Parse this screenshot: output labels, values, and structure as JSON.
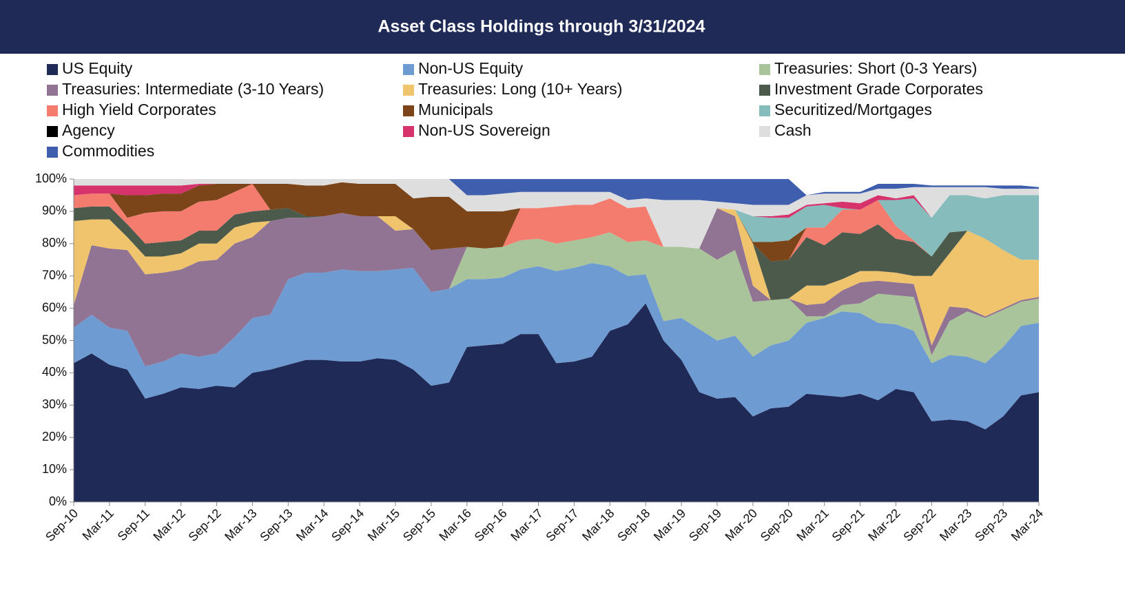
{
  "chart_data": {
    "type": "stacked_area",
    "title": "Asset Class Holdings through 3/31/2024",
    "categories": [
      "Sep-10",
      null,
      "Mar-11",
      null,
      "Sep-11",
      null,
      "Mar-12",
      null,
      "Sep-12",
      null,
      "Mar-13",
      null,
      "Sep-13",
      null,
      "Mar-14",
      null,
      "Sep-14",
      null,
      "Mar-15",
      null,
      "Sep-15",
      null,
      "Mar-16",
      null,
      "Sep-16",
      null,
      "Mar-17",
      null,
      "Sep-17",
      null,
      "Mar-18",
      null,
      "Sep-18",
      null,
      "Mar-19",
      null,
      "Sep-19",
      null,
      "Mar-20",
      null,
      "Sep-20",
      null,
      "Mar-21",
      null,
      "Sep-21",
      null,
      "Mar-22",
      null,
      "Sep-22",
      null,
      "Mar-23",
      null,
      "Sep-23",
      null,
      "Mar-24"
    ],
    "ylim": [
      0,
      100
    ],
    "yticks": [
      {
        "value": 0,
        "label": "0%"
      },
      {
        "value": 10,
        "label": "10%"
      },
      {
        "value": 20,
        "label": "20%"
      },
      {
        "value": 30,
        "label": "30%"
      },
      {
        "value": 40,
        "label": "40%"
      },
      {
        "value": 50,
        "label": "50%"
      },
      {
        "value": 60,
        "label": "60%"
      },
      {
        "value": 70,
        "label": "70%"
      },
      {
        "value": 80,
        "label": "80%"
      },
      {
        "value": 90,
        "label": "90%"
      },
      {
        "value": 100,
        "label": "100%"
      }
    ],
    "series": [
      {
        "name": "US Equity",
        "color": "#1f2a56",
        "values": [
          43,
          46,
          42.5,
          41,
          32,
          33.5,
          35.5,
          35,
          36,
          35.5,
          40,
          41,
          42.5,
          44,
          44,
          43.5,
          43.5,
          44.5,
          44,
          41,
          36,
          37,
          48,
          48.5,
          49,
          52,
          52,
          43,
          43.5,
          45,
          53,
          55,
          61.5,
          50,
          44,
          34,
          32,
          32.5,
          26.5,
          29,
          29.5,
          33.5,
          33,
          32.5,
          33.5,
          31.5,
          35,
          34,
          25,
          25.5,
          25,
          22.5,
          26.5,
          33,
          34
        ]
      },
      {
        "name": "Non-US Equity",
        "color": "#6f9bd3",
        "values": [
          11,
          12,
          11.5,
          12,
          10,
          10,
          10.5,
          10,
          10,
          15.5,
          17,
          17,
          26.5,
          27,
          27,
          28.5,
          28,
          27,
          28,
          31.5,
          29,
          29,
          21,
          20.5,
          20.5,
          20,
          21,
          28.5,
          29,
          29,
          20,
          15,
          9,
          6,
          13,
          19.5,
          18,
          19,
          18.5,
          19.5,
          20.5,
          22,
          24,
          26.5,
          25,
          24,
          20,
          19,
          18,
          20,
          20,
          20.5,
          21.5,
          21.5,
          21.5
        ]
      },
      {
        "name": "Treasuries: Short (0-3 Years)",
        "color": "#a9c49a",
        "values": [
          0,
          0,
          0,
          0,
          0,
          0,
          0,
          0,
          0,
          0,
          0,
          0,
          0,
          0,
          0,
          0,
          0,
          0,
          0,
          0,
          0,
          0,
          10,
          9.5,
          9.5,
          9,
          8.5,
          8.5,
          8.5,
          8,
          10.5,
          10.5,
          10.5,
          23,
          22,
          25,
          25,
          26.5,
          17,
          14,
          13,
          2,
          0.5,
          2,
          3,
          9,
          9,
          10.5,
          2.5,
          10.5,
          14,
          14,
          11.5,
          7.5,
          7.5
        ]
      },
      {
        "name": "Treasuries: Intermediate (3-10 Years)",
        "color": "#917393",
        "values": [
          7,
          21.5,
          24.5,
          25,
          28.5,
          27.5,
          26,
          29.5,
          29,
          29,
          25,
          29,
          19,
          17,
          17.5,
          17.5,
          17,
          17,
          12,
          12,
          13,
          12.5,
          0,
          0,
          0,
          0,
          0,
          0,
          0,
          0,
          0,
          0,
          0,
          0,
          0,
          0,
          16,
          10.5,
          5,
          0,
          0,
          3.5,
          4,
          4.5,
          6.5,
          4,
          4,
          4,
          3,
          4.5,
          1,
          0.5,
          0.5,
          0.5,
          0.5
        ]
      },
      {
        "name": "Treasuries: Long (10+ Years)",
        "color": "#f0c36d",
        "values": [
          26,
          8,
          9,
          4,
          5.5,
          5,
          5,
          5.5,
          5,
          5,
          4.5,
          0,
          0,
          0,
          0,
          0,
          0,
          0,
          4.5,
          0,
          0,
          0,
          0,
          0,
          0,
          0,
          0,
          0,
          0,
          0,
          0,
          0,
          0,
          0,
          0,
          0,
          0,
          2,
          13,
          0,
          0,
          6,
          5.5,
          3.5,
          3.5,
          3,
          3,
          2.5,
          21.5,
          16.5,
          24,
          24,
          18,
          12.5,
          11.5
        ]
      },
      {
        "name": "Investment Grade Corporates",
        "color": "#4b5a4b",
        "values": [
          4,
          4,
          4,
          4,
          4,
          4.5,
          4,
          4,
          4,
          4,
          3.5,
          3.5,
          3,
          0.5,
          0,
          0,
          0,
          0,
          0,
          0,
          0,
          0,
          0,
          0,
          0,
          0,
          0,
          0,
          0,
          0,
          0,
          0,
          0,
          0,
          0,
          0,
          0,
          0,
          0,
          12,
          12,
          15,
          12.5,
          14.5,
          11.5,
          14.5,
          10.5,
          10.5,
          6,
          6.5,
          0,
          0,
          0,
          0,
          0
        ]
      },
      {
        "name": "High Yield Corporates",
        "color": "#f47c6f",
        "values": [
          4,
          4,
          4,
          2,
          9.5,
          9.5,
          9,
          9,
          9.5,
          7,
          8.5,
          0,
          0,
          0,
          0,
          0,
          0,
          0,
          0,
          0,
          0,
          0,
          0,
          0,
          0,
          10,
          9.5,
          11.5,
          11,
          10,
          10.5,
          10.5,
          10.5,
          0,
          0,
          0,
          0,
          0,
          0,
          0,
          0,
          3,
          5.5,
          7,
          7.5,
          7.5,
          4,
          0.5,
          0,
          0,
          0,
          0,
          0,
          0,
          0
        ]
      },
      {
        "name": "Municipals",
        "color": "#7b4519",
        "values": [
          0,
          0,
          0,
          7,
          5.5,
          5.5,
          5.5,
          5,
          5,
          2.5,
          0,
          8,
          7.5,
          9.5,
          9.5,
          9.5,
          10,
          10,
          10,
          9.5,
          16.5,
          16,
          11,
          11.5,
          11,
          0,
          0,
          0,
          0,
          0,
          0,
          0,
          0,
          0,
          0,
          0,
          0,
          0,
          0.5,
          6,
          6,
          0,
          0,
          0,
          0,
          0,
          0,
          0,
          0,
          0,
          0,
          0,
          0,
          0,
          0
        ]
      },
      {
        "name": "Securitized/Mortgages",
        "color": "#86bcbc",
        "values": [
          0,
          0,
          0,
          0,
          0,
          0,
          0,
          0,
          0,
          0,
          0,
          0,
          0,
          0,
          0,
          0,
          0,
          0,
          0,
          0,
          0,
          0,
          0,
          0,
          0,
          0,
          0,
          0,
          0,
          0,
          0,
          0,
          0,
          0,
          0,
          0,
          0,
          0,
          8,
          7.5,
          7,
          6.5,
          7,
          0.5,
          0,
          0,
          8,
          13,
          12,
          11.5,
          11,
          12.5,
          17,
          20,
          20
        ]
      },
      {
        "name": "Agency",
        "color": "#000000",
        "values": [
          0,
          0,
          0,
          0,
          0,
          0,
          0,
          0,
          0,
          0,
          0,
          0,
          0,
          0,
          0,
          0,
          0,
          0,
          0,
          0,
          0,
          0,
          0,
          0,
          0,
          0,
          0,
          0,
          0,
          0,
          0,
          0,
          0,
          0,
          0,
          0,
          0,
          0,
          0,
          0,
          0,
          0,
          0,
          0,
          0,
          0,
          0,
          0,
          0,
          0,
          0,
          0,
          0,
          0,
          0
        ]
      },
      {
        "name": "Non-US Sovereign",
        "color": "#d6336c",
        "values": [
          3,
          2.5,
          2.5,
          3,
          3,
          2.5,
          2.5,
          0.5,
          0,
          0,
          0,
          0,
          0,
          0,
          0,
          0,
          0,
          0,
          0,
          0,
          0,
          0,
          0,
          0,
          0,
          0,
          0,
          0,
          0,
          0,
          0,
          0,
          0,
          0,
          0,
          0,
          0,
          0,
          0,
          0.5,
          1,
          0.5,
          0.5,
          2,
          2,
          1.5,
          0.5,
          1,
          0,
          0,
          0,
          0,
          0,
          0,
          0
        ]
      },
      {
        "name": "Cash",
        "color": "#dedede",
        "values": [
          2,
          2,
          2,
          2,
          2,
          2,
          2,
          1.5,
          1.5,
          1.5,
          1.5,
          1.5,
          1.5,
          2,
          2,
          1,
          1.5,
          1.5,
          1.5,
          6,
          5.5,
          5.5,
          5,
          5,
          5.5,
          5,
          5,
          4.5,
          4,
          4,
          2,
          2.5,
          2.5,
          14.5,
          14.5,
          15,
          2,
          2,
          3.5,
          3.5,
          3,
          3,
          3,
          2.5,
          3,
          2,
          3,
          2.5,
          9.5,
          2.5,
          2.5,
          3.5,
          2,
          2,
          2
        ]
      },
      {
        "name": "Commodities",
        "color": "#3f5fae",
        "values": [
          0,
          0,
          0,
          0,
          0,
          0,
          0,
          0,
          0,
          0,
          0,
          0,
          0,
          0,
          0,
          0,
          0,
          0,
          0,
          0,
          0,
          0,
          5,
          5,
          4.5,
          4,
          4,
          4,
          4,
          4,
          4,
          6.5,
          6,
          6.5,
          6.5,
          6.5,
          7,
          7.5,
          8,
          8,
          8,
          0,
          0.5,
          0.5,
          0.5,
          1.5,
          1.5,
          1,
          0.5,
          0.5,
          0.5,
          0.5,
          1,
          1,
          0.5
        ]
      }
    ]
  }
}
